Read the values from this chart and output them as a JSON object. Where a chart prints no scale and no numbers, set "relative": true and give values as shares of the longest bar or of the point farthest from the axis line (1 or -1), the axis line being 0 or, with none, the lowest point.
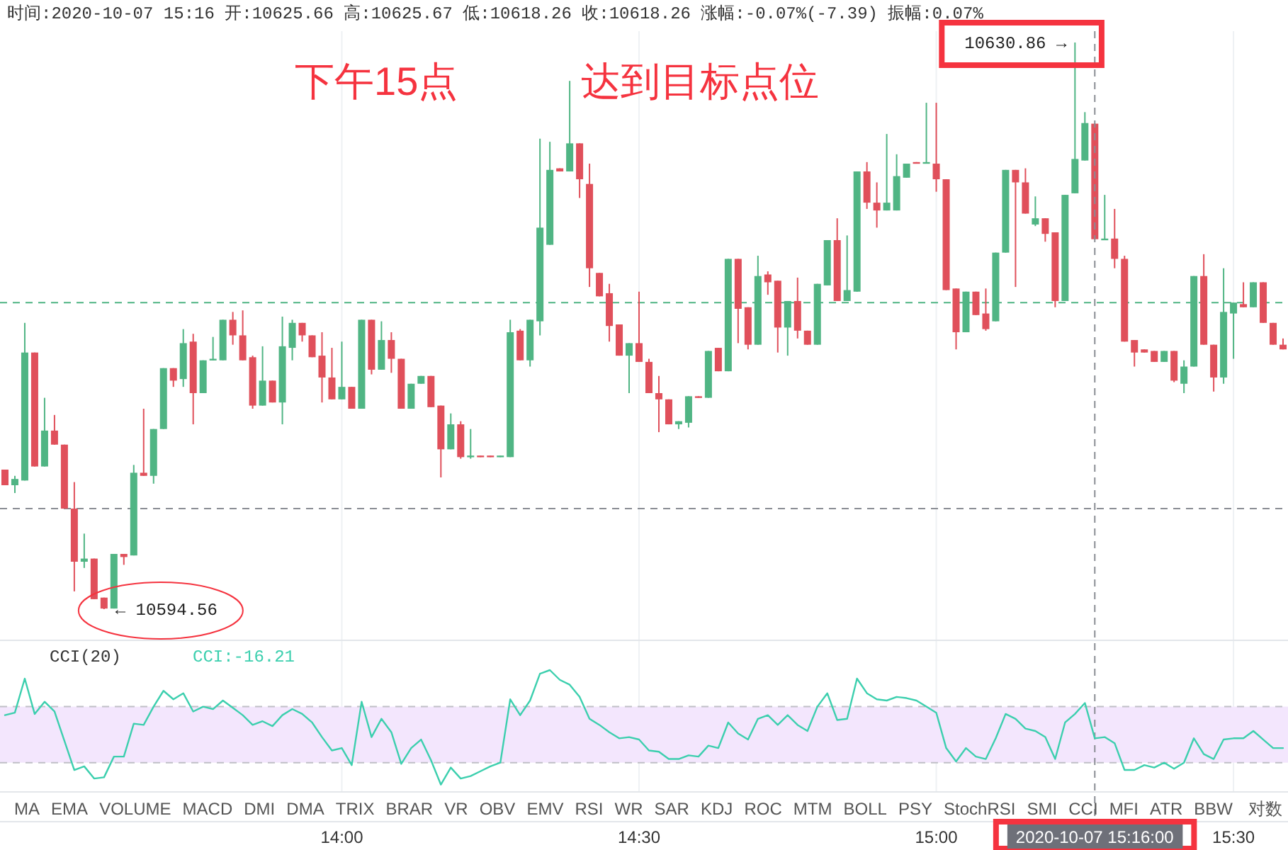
{
  "chart_data": [
    {
      "type": "candlestick",
      "categories": [
        null,
        null,
        null,
        null,
        null,
        null,
        null,
        null,
        null,
        null,
        null,
        null,
        null,
        null,
        null,
        null,
        null,
        null,
        null,
        null,
        null,
        null,
        null,
        null,
        null,
        null,
        null,
        null,
        null,
        null,
        null,
        null,
        null,
        null,
        null,
        null,
        null,
        null,
        null,
        null,
        null,
        null,
        null,
        null,
        null,
        null,
        null,
        null,
        null,
        null,
        null,
        null,
        null,
        null,
        null,
        null,
        null,
        null,
        null,
        null,
        null,
        null,
        null,
        null,
        null,
        null,
        null,
        null,
        null,
        null,
        null,
        null,
        null,
        null,
        null,
        null,
        null,
        null,
        null,
        null,
        null,
        null,
        null,
        null,
        null,
        null,
        null,
        null,
        null,
        null,
        null,
        null,
        null,
        null,
        null,
        null,
        null,
        null,
        null,
        null,
        null,
        null,
        null,
        null,
        null,
        null,
        null,
        null,
        null,
        null,
        null,
        null,
        null,
        null,
        null,
        null,
        null,
        null,
        null,
        null,
        null,
        null,
        null,
        null,
        null,
        null,
        null,
        null,
        null,
        null
      ],
      "ohlc": [
        [
          10603.5,
          10603.5,
          10602.5,
          10602.5
        ],
        [
          10602.5,
          10603.1,
          10602.0,
          10602.9
        ],
        [
          10602.8,
          10612.9,
          10602.8,
          10611.0
        ],
        [
          10611.0,
          10611.0,
          10603.7,
          10603.7
        ],
        [
          10603.7,
          10608.1,
          10603.7,
          10606.0
        ],
        [
          10606.0,
          10607.0,
          10605.1,
          10605.1
        ],
        [
          10605.1,
          10605.1,
          10601.0,
          10601.0
        ],
        [
          10601.0,
          10602.7,
          10595.7,
          10597.6
        ],
        [
          10597.6,
          10599.4,
          10597.2,
          10597.8
        ],
        [
          10597.8,
          10597.8,
          10595.2,
          10595.2
        ],
        [
          10595.3,
          10595.3,
          10594.56,
          10594.6
        ],
        [
          10594.6,
          10598.1,
          10594.6,
          10598.1
        ],
        [
          10598.1,
          10598.1,
          10597.4,
          10597.9
        ],
        [
          10598.0,
          10603.8,
          10598.0,
          10603.3
        ],
        [
          10603.3,
          10607.4,
          10603.1,
          10603.1
        ],
        [
          10603.1,
          10606.1,
          10602.6,
          10606.1
        ],
        [
          10606.1,
          10610.0,
          10606.1,
          10610.0
        ],
        [
          10610.0,
          10610.0,
          10608.8,
          10609.2
        ],
        [
          10609.3,
          10612.5,
          10608.8,
          10611.6
        ],
        [
          10611.7,
          10612.2,
          10606.4,
          10608.4
        ],
        [
          10608.4,
          10610.5,
          10608.4,
          10610.5
        ],
        [
          10610.5,
          10612.0,
          10610.5,
          10610.6
        ],
        [
          10610.5,
          10613.1,
          10610.5,
          10613.1
        ],
        [
          10613.1,
          10613.6,
          10611.5,
          10612.1
        ],
        [
          10612.1,
          10613.7,
          10610.5,
          10610.5
        ],
        [
          10610.7,
          10610.8,
          10607.4,
          10607.6
        ],
        [
          10607.6,
          10611.4,
          10607.6,
          10609.2
        ],
        [
          10609.2,
          10609.2,
          10607.8,
          10607.8
        ],
        [
          10607.8,
          10613.3,
          10606.4,
          10611.4
        ],
        [
          10611.3,
          10613.1,
          10610.5,
          10612.9
        ],
        [
          10612.9,
          10612.9,
          10611.7,
          10612.1
        ],
        [
          10612.1,
          10612.1,
          10610.7,
          10610.7
        ],
        [
          10610.8,
          10612.3,
          10607.8,
          10609.4
        ],
        [
          10609.4,
          10611.3,
          10608.0,
          10608.0
        ],
        [
          10608.0,
          10611.7,
          10608.0,
          10608.8
        ],
        [
          10608.8,
          10608.8,
          10607.4,
          10607.4
        ],
        [
          10607.4,
          10613.1,
          10607.4,
          10613.1
        ],
        [
          10613.1,
          10613.1,
          10609.6,
          10609.9
        ],
        [
          10609.9,
          10613.0,
          10609.9,
          10611.8
        ],
        [
          10611.8,
          10612.3,
          10609.7,
          10610.6
        ],
        [
          10610.6,
          10610.6,
          10607.4,
          10607.4
        ],
        [
          10607.4,
          10609.0,
          10607.4,
          10609.0
        ],
        [
          10609.0,
          10609.5,
          10609.0,
          10609.5
        ],
        [
          10609.5,
          10609.5,
          10607.5,
          10607.5
        ],
        [
          10607.6,
          10607.6,
          10603.0,
          10604.8
        ],
        [
          10604.8,
          10607.1,
          10604.8,
          10606.4
        ],
        [
          10606.4,
          10606.6,
          10604.2,
          10604.3
        ],
        [
          10604.3,
          10606.1,
          10604.2,
          10604.4
        ],
        [
          10604.4,
          10604.4,
          10604.3,
          10604.3
        ],
        [
          10604.4,
          10604.4,
          10604.3,
          10604.3
        ],
        [
          10604.3,
          10604.4,
          10604.3,
          10604.4
        ],
        [
          10604.3,
          10613.1,
          10604.3,
          10612.3
        ],
        [
          10612.4,
          10612.5,
          10610.5,
          10610.5
        ],
        [
          10610.5,
          10613.1,
          10610.1,
          10613.1
        ],
        [
          10613.0,
          10624.7,
          10612.1,
          10619.0
        ],
        [
          10617.9,
          10624.5,
          10617.9,
          10622.7
        ],
        [
          10622.8,
          10622.8,
          10622.6,
          10622.6
        ],
        [
          10622.6,
          10628.4,
          10622.6,
          10624.4
        ],
        [
          10624.4,
          10624.4,
          10620.9,
          10622.1
        ],
        [
          10621.8,
          10623.1,
          10615.2,
          10616.4
        ],
        [
          10616.1,
          10616.1,
          10614.6,
          10614.6
        ],
        [
          10614.8,
          10615.4,
          10611.7,
          10612.7
        ],
        [
          10612.8,
          10612.8,
          10610.8,
          10610.8
        ],
        [
          10610.8,
          10611.6,
          10608.4,
          10611.6
        ],
        [
          10611.6,
          10614.9,
          10610.4,
          10610.4
        ],
        [
          10610.4,
          10610.6,
          10608.4,
          10608.4
        ],
        [
          10608.4,
          10609.5,
          10605.9,
          10608.0
        ],
        [
          10608.0,
          10608.0,
          10606.4,
          10606.4
        ],
        [
          10606.4,
          10606.6,
          10606.1,
          10606.6
        ],
        [
          10606.5,
          10608.2,
          10606.2,
          10608.2
        ],
        [
          10608.2,
          10608.2,
          10608.1,
          10608.1
        ],
        [
          10608.1,
          10611.1,
          10608.1,
          10611.1
        ],
        [
          10611.3,
          10611.3,
          10609.8,
          10609.8
        ],
        [
          10609.8,
          10617.0,
          10609.8,
          10617.0
        ],
        [
          10617.0,
          10617.0,
          10611.6,
          10613.8
        ],
        [
          10613.9,
          10613.9,
          10611.2,
          10611.5
        ],
        [
          10611.5,
          10617.2,
          10611.5,
          10615.9
        ],
        [
          10616.0,
          10616.2,
          10614.7,
          10615.5
        ],
        [
          10615.6,
          10615.6,
          10611.0,
          10612.6
        ],
        [
          10612.6,
          10614.3,
          10610.8,
          10614.3
        ],
        [
          10614.3,
          10615.8,
          10611.9,
          10612.4
        ],
        [
          10612.4,
          10612.4,
          10611.5,
          10611.5
        ],
        [
          10611.5,
          10615.4,
          10611.5,
          10615.4
        ],
        [
          10615.3,
          10618.2,
          10615.3,
          10618.2
        ],
        [
          10618.2,
          10619.6,
          10614.3,
          10614.3
        ],
        [
          10614.3,
          10618.5,
          10614.3,
          10615.0
        ],
        [
          10614.9,
          10622.6,
          10614.9,
          10622.6
        ],
        [
          10622.6,
          10623.2,
          10620.2,
          10620.6
        ],
        [
          10620.6,
          10621.9,
          10619.0,
          10620.1
        ],
        [
          10620.1,
          10625.0,
          10620.1,
          10620.6
        ],
        [
          10620.1,
          10623.7,
          10620.1,
          10622.3
        ],
        [
          10622.2,
          10623.1,
          10622.2,
          10623.1
        ],
        [
          10623.2,
          10623.2,
          10623.1,
          10623.1
        ],
        [
          10623.1,
          10627.0,
          10623.1,
          10623.2
        ],
        [
          10623.1,
          10627.0,
          10621.3,
          10622.1
        ],
        [
          10622.1,
          10622.1,
          10615.0,
          10615.0
        ],
        [
          10615.1,
          10615.1,
          10611.2,
          10612.3
        ],
        [
          10612.3,
          10614.9,
          10612.3,
          10614.9
        ],
        [
          10614.9,
          10614.9,
          10613.4,
          10613.4
        ],
        [
          10613.5,
          10615.1,
          10612.4,
          10612.5
        ],
        [
          10613.0,
          10617.4,
          10613.0,
          10617.4
        ],
        [
          10617.4,
          10622.7,
          10617.4,
          10622.7
        ],
        [
          10622.7,
          10622.7,
          10615.2,
          10621.9
        ],
        [
          10621.9,
          10622.8,
          10619.9,
          10619.9
        ],
        [
          10619.2,
          10621.0,
          10619.1,
          10619.6
        ],
        [
          10619.6,
          10619.6,
          10618.1,
          10618.6
        ],
        [
          10618.7,
          10618.7,
          10613.9,
          10614.3
        ],
        [
          10614.3,
          10621.1,
          10614.3,
          10621.1
        ],
        [
          10621.2,
          10630.86,
          10621.2,
          10623.4
        ],
        [
          10623.3,
          10626.4,
          10623.3,
          10625.7
        ],
        [
          10625.66,
          10625.67,
          10618.26,
          10618.26
        ],
        [
          10618.2,
          10621.1,
          10618.2,
          10618.3
        ],
        [
          10618.3,
          10620.2,
          10616.4,
          10617.0
        ],
        [
          10617.0,
          10617.2,
          10611.7,
          10611.7
        ],
        [
          10611.8,
          10611.8,
          10610.1,
          10611.0
        ],
        [
          10611.2,
          10611.2,
          10611.0,
          10611.0
        ],
        [
          10611.1,
          10611.1,
          10610.4,
          10610.4
        ],
        [
          10610.4,
          10611.1,
          10610.4,
          10611.1
        ],
        [
          10611.1,
          10611.1,
          10609.1,
          10609.2
        ],
        [
          10609.0,
          10610.5,
          10608.4,
          10610.1
        ],
        [
          10610.1,
          10615.9,
          10610.1,
          10615.9
        ],
        [
          10615.9,
          10617.3,
          10611.5,
          10611.5
        ],
        [
          10611.5,
          10611.5,
          10608.5,
          10609.4
        ],
        [
          10609.4,
          10616.4,
          10609.0,
          10613.6
        ],
        [
          10613.5,
          10614.2,
          10610.6,
          10614.2
        ],
        [
          10614.1,
          10615.5,
          10613.9,
          10613.9
        ],
        [
          10613.9,
          10615.5,
          10613.9,
          10615.5
        ],
        [
          10615.5,
          10615.5,
          10612.9,
          10612.9
        ],
        [
          10612.9,
          10612.9,
          10611.5,
          10611.5
        ],
        [
          10611.5,
          10611.9,
          10611.2,
          10611.2
        ]
      ],
      "colors": [
        "#e0505b",
        "#50b584",
        "#50b584",
        "#e0505b",
        "#50b584",
        "#e0505b",
        "#e0505b",
        "#e0505b",
        "#50b584",
        "#e0505b",
        "#e0505b",
        "#50b584",
        "#e0505b",
        "#50b584",
        "#e0505b",
        "#50b584",
        "#50b584",
        "#e0505b",
        "#50b584",
        "#e0505b",
        "#50b584",
        "#50b584",
        "#50b584",
        "#e0505b",
        "#e0505b",
        "#e0505b",
        "#50b584",
        "#e0505b",
        "#50b584",
        "#50b584",
        "#e0505b",
        "#e0505b",
        "#e0505b",
        "#e0505b",
        "#50b584",
        "#e0505b",
        "#50b584",
        "#e0505b",
        "#50b584",
        "#e0505b",
        "#e0505b",
        "#50b584",
        "#50b584",
        "#e0505b",
        "#e0505b",
        "#50b584",
        "#e0505b",
        "#50b584",
        "#e0505b",
        "#e0505b",
        "#50b584",
        "#50b584",
        "#e0505b",
        "#50b584",
        "#50b584",
        "#50b584",
        "#e0505b",
        "#50b584",
        "#e0505b",
        "#e0505b",
        "#e0505b",
        "#e0505b",
        "#e0505b",
        "#50b584",
        "#e0505b",
        "#e0505b",
        "#e0505b",
        "#e0505b",
        "#50b584",
        "#50b584",
        "#e0505b",
        "#50b584",
        "#e0505b",
        "#50b584",
        "#e0505b",
        "#e0505b",
        "#50b584",
        "#e0505b",
        "#e0505b",
        "#50b584",
        "#e0505b",
        "#e0505b",
        "#50b584",
        "#50b584",
        "#e0505b",
        "#50b584",
        "#50b584",
        "#e0505b",
        "#e0505b",
        "#50b584",
        "#50b584",
        "#50b584",
        "#e0505b",
        "#50b584",
        "#e0505b",
        "#e0505b",
        "#e0505b",
        "#50b584",
        "#e0505b",
        "#e0505b",
        "#50b584",
        "#50b584",
        "#e0505b",
        "#e0505b",
        "#50b584",
        "#e0505b",
        "#e0505b",
        "#50b584",
        "#50b584",
        "#50b584",
        "#e0505b",
        "#50b584",
        "#e0505b",
        "#e0505b",
        "#e0505b",
        "#e0505b",
        "#e0505b",
        "#50b584",
        "#e0505b",
        "#50b584",
        "#50b584",
        "#e0505b",
        "#e0505b",
        "#50b584",
        "#50b584",
        "#e0505b",
        "#50b584",
        "#e0505b",
        "#e0505b",
        "#e0505b"
      ],
      "ref_lines": [
        {
          "axis": "y",
          "value": 10614.2,
          "color": "#50b584",
          "line_style": "dashed"
        },
        {
          "axis": "y",
          "value": 10601.0,
          "color": "#8a8d94",
          "line_style": "dashed"
        }
      ],
      "annotations": [
        "时间:2020-10-07 15:16  开:10625.66  高:10625.67  低:10618.26  收:10618.26  涨幅:-0.07%(-7.39)  振幅:0.07%",
        "下午15点",
        "达到目标点位",
        "10630.86 →",
        "← 10594.56"
      ]
    },
    {
      "type": "line",
      "title": "CCI(20)",
      "relative": true,
      "tick_labels": "x",
      "grid": "x",
      "xlim": [
        "2020-10-07T13:25:30",
        "2020-10-07T15:35:30"
      ],
      "xticks": [
        {
          "value": "2020-10-07T14:00",
          "label": "14:00"
        },
        {
          "value": "2020-10-07T14:30",
          "label": "14:30"
        },
        {
          "value": "2020-10-07T15:00",
          "label": "15:00"
        },
        {
          "value": "2020-10-07T15:30",
          "label": "15:30"
        }
      ],
      "x": [
        "2020-10-07T13:26",
        "2020-10-07T13:27",
        "2020-10-07T13:28",
        "2020-10-07T13:29",
        "2020-10-07T13:30",
        "2020-10-07T13:31",
        "2020-10-07T13:32",
        "2020-10-07T13:33",
        "2020-10-07T13:34",
        "2020-10-07T13:35",
        "2020-10-07T13:36",
        "2020-10-07T13:37",
        "2020-10-07T13:38",
        "2020-10-07T13:39",
        "2020-10-07T13:40",
        "2020-10-07T13:41",
        "2020-10-07T13:42",
        "2020-10-07T13:43",
        "2020-10-07T13:44",
        "2020-10-07T13:45",
        "2020-10-07T13:46",
        "2020-10-07T13:47",
        "2020-10-07T13:48",
        "2020-10-07T13:49",
        "2020-10-07T13:50",
        "2020-10-07T13:51",
        "2020-10-07T13:52",
        "2020-10-07T13:53",
        "2020-10-07T13:54",
        "2020-10-07T13:55",
        "2020-10-07T13:56",
        "2020-10-07T13:57",
        "2020-10-07T13:58",
        "2020-10-07T13:59",
        "2020-10-07T14:00",
        "2020-10-07T14:01",
        "2020-10-07T14:02",
        "2020-10-07T14:03",
        "2020-10-07T14:04",
        "2020-10-07T14:05",
        "2020-10-07T14:06",
        "2020-10-07T14:07",
        "2020-10-07T14:08",
        "2020-10-07T14:09",
        "2020-10-07T14:10",
        "2020-10-07T14:11",
        "2020-10-07T14:12",
        "2020-10-07T14:13",
        "2020-10-07T14:14",
        "2020-10-07T14:15",
        "2020-10-07T14:16",
        "2020-10-07T14:17",
        "2020-10-07T14:18",
        "2020-10-07T14:19",
        "2020-10-07T14:20",
        "2020-10-07T14:21",
        "2020-10-07T14:22",
        "2020-10-07T14:23",
        "2020-10-07T14:24",
        "2020-10-07T14:25",
        "2020-10-07T14:26",
        "2020-10-07T14:27",
        "2020-10-07T14:28",
        "2020-10-07T14:29",
        "2020-10-07T14:30",
        "2020-10-07T14:31",
        "2020-10-07T14:32",
        "2020-10-07T14:33",
        "2020-10-07T14:34",
        "2020-10-07T14:35",
        "2020-10-07T14:36",
        "2020-10-07T14:37",
        "2020-10-07T14:38",
        "2020-10-07T14:39",
        "2020-10-07T14:40",
        "2020-10-07T14:41",
        "2020-10-07T14:42",
        "2020-10-07T14:43",
        "2020-10-07T14:44",
        "2020-10-07T14:45",
        "2020-10-07T14:46",
        "2020-10-07T14:47",
        "2020-10-07T14:48",
        "2020-10-07T14:49",
        "2020-10-07T14:50",
        "2020-10-07T14:51",
        "2020-10-07T14:52",
        "2020-10-07T14:53",
        "2020-10-07T14:54",
        "2020-10-07T14:55",
        "2020-10-07T14:56",
        "2020-10-07T14:57",
        "2020-10-07T14:58",
        "2020-10-07T14:59",
        "2020-10-07T15:00",
        "2020-10-07T15:01",
        "2020-10-07T15:02",
        "2020-10-07T15:03",
        "2020-10-07T15:04",
        "2020-10-07T15:05",
        "2020-10-07T15:06",
        "2020-10-07T15:07",
        "2020-10-07T15:08",
        "2020-10-07T15:09",
        "2020-10-07T15:10",
        "2020-10-07T15:11",
        "2020-10-07T15:12",
        "2020-10-07T15:13",
        "2020-10-07T15:14",
        "2020-10-07T15:15",
        "2020-10-07T15:16",
        "2020-10-07T15:17",
        "2020-10-07T15:18",
        "2020-10-07T15:19",
        "2020-10-07T15:20",
        "2020-10-07T15:21",
        "2020-10-07T15:22",
        "2020-10-07T15:23",
        "2020-10-07T15:24",
        "2020-10-07T15:25",
        "2020-10-07T15:26",
        "2020-10-07T15:27",
        "2020-10-07T15:28",
        "2020-10-07T15:29",
        "2020-10-07T15:30",
        "2020-10-07T15:31",
        "2020-10-07T15:32",
        "2020-10-07T15:33",
        "2020-10-07T15:34",
        "2020-10-07T15:35"
      ],
      "series": [
        {
          "color": "#3ccfae",
          "values": [
            0.63,
            0.65,
            0.93,
            0.64,
            0.74,
            0.66,
            0.42,
            0.18,
            0.21,
            0.11,
            0.12,
            0.29,
            0.29,
            0.56,
            0.55,
            0.7,
            0.83,
            0.76,
            0.81,
            0.66,
            0.7,
            0.68,
            0.75,
            0.69,
            0.63,
            0.55,
            0.58,
            0.54,
            0.63,
            0.68,
            0.64,
            0.57,
            0.45,
            0.34,
            0.36,
            0.22,
            0.74,
            0.45,
            0.6,
            0.49,
            0.23,
            0.36,
            0.43,
            0.26,
            0.06,
            0.2,
            0.11,
            0.13,
            0.17,
            0.21,
            0.24,
            0.76,
            0.63,
            0.75,
            0.97,
            1,
            0.92,
            0.88,
            0.78,
            0.6,
            0.55,
            0.49,
            0.44,
            0.45,
            0.43,
            0.34,
            0.33,
            0.27,
            0.27,
            0.3,
            0.29,
            0.38,
            0.36,
            0.57,
            0.48,
            0.43,
            0.6,
            0.63,
            0.55,
            0.63,
            0.55,
            0.5,
            0.7,
            0.81,
            0.59,
            0.6,
            0.93,
            0.81,
            0.76,
            0.75,
            0.78,
            0.77,
            0.75,
            0.7,
            0.65,
            0.36,
            0.25,
            0.36,
            0.29,
            0.27,
            0.44,
            0.64,
            0.6,
            0.52,
            0.5,
            0.45,
            0.27,
            0.57,
            0.64,
            0.73,
            0.44,
            0.45,
            0.4,
            0.18,
            0.18,
            0.22,
            0.2,
            0.24,
            0.19,
            0.24,
            0.44,
            0.31,
            0.27,
            0.43,
            0.44,
            0.44,
            0.5,
            0.43,
            0.36,
            0.36
          ]
        }
      ],
      "bands": [
        {
          "axis": "y",
          "from": 0.24,
          "to": 0.7,
          "color": "#f3e6fd"
        }
      ],
      "ref_lines": [
        {
          "axis": "y",
          "value": 0.24,
          "color": "#c0c0c6",
          "line_style": "dashed"
        },
        {
          "axis": "y",
          "value": 0.7,
          "color": "#c0c0c6",
          "line_style": "dashed"
        },
        {
          "axis": "x",
          "value": "2020-10-07T15:16",
          "label": "2020-10-07 15:16:00",
          "color": "#8a8d94",
          "line_style": "dashed"
        }
      ],
      "annotations": [
        "CCI:-16.21",
        "MA EMA VOLUME MACD DMI DMA TRIX BRAR VR OBV EMV RSI WR SAR KDJ ROC MTM BOLL PSY StochRSI SMI CCI MFI ATR BBW",
        "对数"
      ]
    }
  ]
}
